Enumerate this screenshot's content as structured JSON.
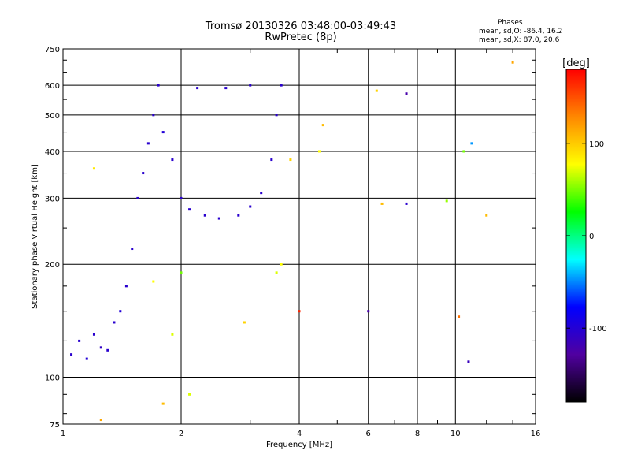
{
  "chart_data": {
    "type": "scatter",
    "title": "Tromsø 20130326 03:48:00-03:49:43",
    "subtitle": "RwPretec (8p)",
    "xlabel": "Frequency [MHz]",
    "ylabel": "Stationary phase Virtual Height [km]",
    "x_scale": "log",
    "y_scale": "log",
    "xlim": [
      1,
      16
    ],
    "ylim": [
      75,
      750
    ],
    "x_ticks": [
      1,
      2,
      4,
      6,
      8,
      10,
      16
    ],
    "x_tick_labels": [
      "1",
      "2",
      "4",
      "6",
      "8",
      "10",
      "16"
    ],
    "y_ticks": [
      75,
      100,
      200,
      300,
      400,
      500,
      600,
      750
    ],
    "y_tick_labels": [
      "75",
      "100",
      "200",
      "300",
      "400",
      "500",
      "600",
      "750"
    ],
    "grid": true,
    "stats": {
      "heading": "Phases",
      "line_o": "mean, sd,O: -86.4, 16.2",
      "line_x": "mean, sd,X:  87.0, 20.6"
    },
    "colorbar": {
      "label": "[deg]",
      "range": [
        -180,
        180
      ],
      "ticks": [
        100,
        0,
        -100
      ],
      "tick_labels": [
        "100",
        "0",
        "-100"
      ],
      "colors": [
        "#ff0000",
        "#ff8800",
        "#ffff00",
        "#00ff00",
        "#00ffff",
        "#0000ff",
        "#5000a0",
        "#000000"
      ]
    },
    "series": [
      {
        "points": [
          {
            "f": 1.05,
            "h": 115,
            "p": -100
          },
          {
            "f": 1.1,
            "h": 125,
            "p": -100
          },
          {
            "f": 1.15,
            "h": 112,
            "p": -95
          },
          {
            "f": 1.2,
            "h": 130,
            "p": -100
          },
          {
            "f": 1.25,
            "h": 120,
            "p": -105
          },
          {
            "f": 1.3,
            "h": 118,
            "p": -100
          },
          {
            "f": 1.35,
            "h": 140,
            "p": -100
          },
          {
            "f": 1.4,
            "h": 150,
            "p": -95
          },
          {
            "f": 1.45,
            "h": 175,
            "p": -100
          },
          {
            "f": 1.5,
            "h": 220,
            "p": -100
          },
          {
            "f": 1.55,
            "h": 300,
            "p": -100
          },
          {
            "f": 1.6,
            "h": 350,
            "p": -100
          },
          {
            "f": 1.65,
            "h": 420,
            "p": -100
          },
          {
            "f": 1.7,
            "h": 500,
            "p": -100
          },
          {
            "f": 1.75,
            "h": 600,
            "p": -100
          },
          {
            "f": 1.8,
            "h": 450,
            "p": -95
          },
          {
            "f": 1.9,
            "h": 380,
            "p": -100
          },
          {
            "f": 2.0,
            "h": 300,
            "p": -100
          },
          {
            "f": 2.1,
            "h": 280,
            "p": -100
          },
          {
            "f": 2.3,
            "h": 270,
            "p": -100
          },
          {
            "f": 2.5,
            "h": 265,
            "p": -100
          },
          {
            "f": 2.8,
            "h": 270,
            "p": -100
          },
          {
            "f": 3.0,
            "h": 285,
            "p": -100
          },
          {
            "f": 3.2,
            "h": 310,
            "p": -100
          },
          {
            "f": 3.4,
            "h": 380,
            "p": -100
          },
          {
            "f": 3.5,
            "h": 500,
            "p": -100
          },
          {
            "f": 3.6,
            "h": 600,
            "p": -100
          },
          {
            "f": 2.2,
            "h": 590,
            "p": -100
          },
          {
            "f": 2.6,
            "h": 590,
            "p": -100
          },
          {
            "f": 3.0,
            "h": 600,
            "p": -100
          },
          {
            "f": 3.5,
            "h": 190,
            "p": 80
          },
          {
            "f": 3.6,
            "h": 200,
            "p": 90
          },
          {
            "f": 3.8,
            "h": 380,
            "p": 110
          },
          {
            "f": 4.5,
            "h": 400,
            "p": 90
          },
          {
            "f": 4.6,
            "h": 470,
            "p": 120
          },
          {
            "f": 2.0,
            "h": 190,
            "p": 50
          },
          {
            "f": 1.7,
            "h": 180,
            "p": 90
          },
          {
            "f": 1.9,
            "h": 130,
            "p": 80
          },
          {
            "f": 1.2,
            "h": 360,
            "p": 100
          },
          {
            "f": 6.3,
            "h": 580,
            "p": 110
          },
          {
            "f": 7.5,
            "h": 570,
            "p": -120
          },
          {
            "f": 7.5,
            "h": 290,
            "p": -100
          },
          {
            "f": 9.5,
            "h": 295,
            "p": 60
          },
          {
            "f": 10.5,
            "h": 400,
            "p": 50
          },
          {
            "f": 11.0,
            "h": 420,
            "p": -40
          },
          {
            "f": 12.0,
            "h": 270,
            "p": 120
          },
          {
            "f": 14.0,
            "h": 690,
            "p": 130
          },
          {
            "f": 10.2,
            "h": 145,
            "p": 150
          },
          {
            "f": 10.8,
            "h": 110,
            "p": -110
          },
          {
            "f": 6.5,
            "h": 290,
            "p": 120
          },
          {
            "f": 6.0,
            "h": 150,
            "p": -120
          },
          {
            "f": 4.0,
            "h": 150,
            "p": 170
          },
          {
            "f": 2.9,
            "h": 140,
            "p": 110
          },
          {
            "f": 2.1,
            "h": 90,
            "p": 80
          },
          {
            "f": 1.8,
            "h": 85,
            "p": 120
          },
          {
            "f": 1.25,
            "h": 77,
            "p": 130
          }
        ]
      }
    ]
  }
}
